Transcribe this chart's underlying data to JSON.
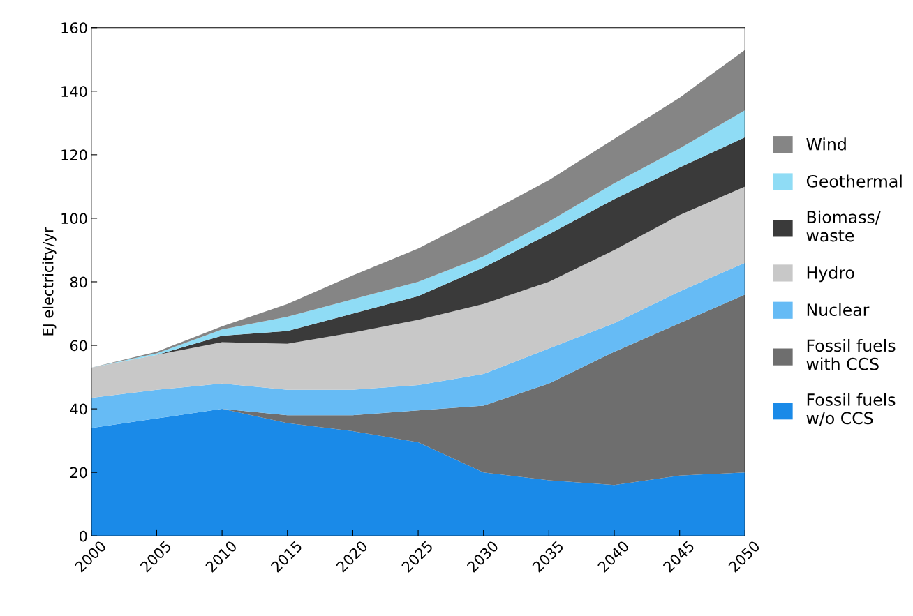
{
  "chart_data": {
    "type": "area",
    "stacked": true,
    "ylabel": "EJ electricity/yr",
    "x": [
      2000,
      2005,
      2010,
      2015,
      2020,
      2025,
      2030,
      2035,
      2040,
      2045,
      2050
    ],
    "xlim": [
      2000,
      2050
    ],
    "xticks": [
      2000,
      2005,
      2010,
      2015,
      2020,
      2025,
      2030,
      2035,
      2040,
      2045,
      2050
    ],
    "ylim": [
      0,
      160
    ],
    "yticks": [
      0,
      20,
      40,
      60,
      80,
      100,
      120,
      140,
      160
    ],
    "grid": false,
    "legend": "right",
    "series": [
      {
        "name": "Fossil fuels\nw/o CCS",
        "color": "#1a8ae8",
        "values": [
          34,
          37,
          40,
          35.5,
          33,
          29.5,
          20,
          17.5,
          16,
          19,
          20
        ]
      },
      {
        "name": "Fossil fuels\nwith CCS",
        "color": "#6e6e6e",
        "values": [
          0,
          0,
          0,
          2.5,
          5,
          10,
          21,
          30.5,
          42,
          48,
          56
        ]
      },
      {
        "name": "Nuclear",
        "color": "#66bbf5",
        "values": [
          9.5,
          9,
          8,
          8,
          8,
          8,
          10,
          11,
          9,
          10,
          10
        ]
      },
      {
        "name": "Hydro",
        "color": "#c8c8c8",
        "values": [
          9.5,
          11,
          13,
          14.5,
          18,
          20.5,
          22,
          21,
          23,
          24,
          24
        ]
      },
      {
        "name": "Biomass/\nwaste",
        "color": "#3a3a3a",
        "values": [
          0,
          0,
          2,
          4,
          6,
          7.5,
          11.5,
          15,
          16,
          15,
          15.5
        ]
      },
      {
        "name": "Geothermal",
        "color": "#8fdcf5",
        "values": [
          0,
          0.5,
          2,
          4.5,
          4.5,
          4.5,
          3.5,
          4,
          5,
          6,
          8.5
        ]
      },
      {
        "name": "Wind",
        "color": "#858585",
        "values": [
          0,
          0.5,
          1,
          4,
          7.5,
          10.5,
          13,
          13,
          14,
          16,
          19
        ]
      }
    ]
  }
}
